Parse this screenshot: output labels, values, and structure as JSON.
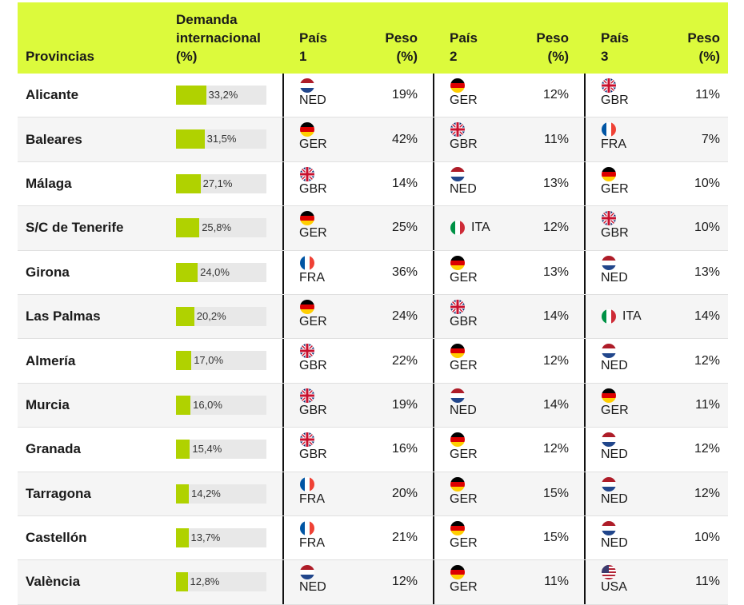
{
  "headers": {
    "provincias": "Provincias",
    "demanda": [
      "Demanda",
      "internacional",
      "(%)"
    ],
    "pais1": [
      "País",
      "1"
    ],
    "peso1": [
      "Peso",
      "(%)"
    ],
    "pais2": [
      "País",
      "2"
    ],
    "peso2": [
      "Peso",
      "(%)"
    ],
    "pais3": [
      "País",
      "3"
    ],
    "peso3": [
      "Peso",
      "(%)"
    ]
  },
  "colors": {
    "header_bg": "#dcfa3c",
    "bar_fill": "#b0d200",
    "bar_track": "#e8e8e8"
  },
  "chart_data": {
    "type": "table",
    "bar_max": 100,
    "rows": [
      {
        "provincia": "Alicante",
        "demanda": 33.2,
        "demanda_label": "33,2%",
        "c1": "NED",
        "p1": "19%",
        "c2": "GER",
        "p2": "12%",
        "c3": "GBR",
        "p3": "11%"
      },
      {
        "provincia": "Baleares",
        "demanda": 31.5,
        "demanda_label": "31,5%",
        "c1": "GER",
        "p1": "42%",
        "c2": "GBR",
        "p2": "11%",
        "c3": "FRA",
        "p3": "7%"
      },
      {
        "provincia": "Málaga",
        "demanda": 27.1,
        "demanda_label": "27,1%",
        "c1": "GBR",
        "p1": "14%",
        "c2": "NED",
        "p2": "13%",
        "c3": "GER",
        "p3": "10%"
      },
      {
        "provincia": "S/C de Tenerife",
        "demanda": 25.8,
        "demanda_label": "25,8%",
        "c1": "GER",
        "p1": "25%",
        "c2": "ITA",
        "p2": "12%",
        "c3": "GBR",
        "p3": "10%"
      },
      {
        "provincia": "Girona",
        "demanda": 24.0,
        "demanda_label": "24,0%",
        "c1": "FRA",
        "p1": "36%",
        "c2": "GER",
        "p2": "13%",
        "c3": "NED",
        "p3": "13%"
      },
      {
        "provincia": "Las Palmas",
        "demanda": 20.2,
        "demanda_label": "20,2%",
        "c1": "GER",
        "p1": "24%",
        "c2": "GBR",
        "p2": "14%",
        "c3": "ITA",
        "p3": "14%"
      },
      {
        "provincia": "Almería",
        "demanda": 17.0,
        "demanda_label": "17,0%",
        "c1": "GBR",
        "p1": "22%",
        "c2": "GER",
        "p2": "12%",
        "c3": "NED",
        "p3": "12%"
      },
      {
        "provincia": "Murcia",
        "demanda": 16.0,
        "demanda_label": "16,0%",
        "c1": "GBR",
        "p1": "19%",
        "c2": "NED",
        "p2": "14%",
        "c3": "GER",
        "p3": "11%"
      },
      {
        "provincia": "Granada",
        "demanda": 15.4,
        "demanda_label": "15,4%",
        "c1": "GBR",
        "p1": "16%",
        "c2": "GER",
        "p2": "12%",
        "c3": "NED",
        "p3": "12%"
      },
      {
        "provincia": "Tarragona",
        "demanda": 14.2,
        "demanda_label": "14,2%",
        "c1": "FRA",
        "p1": "20%",
        "c2": "GER",
        "p2": "15%",
        "c3": "NED",
        "p3": "12%"
      },
      {
        "provincia": "Castellón",
        "demanda": 13.7,
        "demanda_label": "13,7%",
        "c1": "FRA",
        "p1": "21%",
        "c2": "GER",
        "p2": "15%",
        "c3": "NED",
        "p3": "10%"
      },
      {
        "provincia": "València",
        "demanda": 12.8,
        "demanda_label": "12,8%",
        "c1": "NED",
        "p1": "12%",
        "c2": "GER",
        "p2": "11%",
        "c3": "USA",
        "p3": "11%"
      }
    ]
  }
}
